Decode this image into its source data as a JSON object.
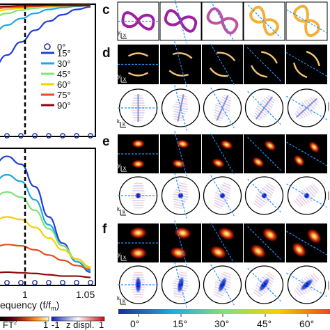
{
  "panel_labels": {
    "c": "c",
    "d": "d",
    "e": "e",
    "f": "f"
  },
  "legend": {
    "items": [
      {
        "label": "0°",
        "color": "#1c2f8f",
        "marker": "open-circle"
      },
      {
        "label": "15°",
        "color": "#1f3fd1"
      },
      {
        "label": "30°",
        "color": "#1fa7e6"
      },
      {
        "label": "45°",
        "color": "#7fe27a"
      },
      {
        "label": "60°",
        "color": "#f5d000"
      },
      {
        "label": "75°",
        "color": "#e84a1a"
      },
      {
        "label": "90°",
        "color": "#8a0a0a"
      }
    ]
  },
  "xaxis": {
    "label": "equency (f/f",
    "sub": "m",
    "close": ")",
    "tick1": "1",
    "tick2": "1.05"
  },
  "colorbars": {
    "ft": {
      "label": "FT",
      "sup": "2",
      "min": "1",
      "max": "1"
    },
    "z": {
      "min": "-1",
      "label": "z displ.",
      "max": "1"
    },
    "angle": {
      "ticks": [
        "0°",
        "15°",
        "30°",
        "45°",
        "60°"
      ]
    }
  },
  "small_axes": {
    "y": "y",
    "x": "x",
    "ky": "k",
    "kysub": "y",
    "kx": "k",
    "kxsub": "x"
  },
  "colors": {
    "frame": "#000000",
    "dashed_blue": "#1e90ff",
    "dashed_black": "#000000",
    "ring_purple": "#a020a0",
    "ring_yellow": "#f2b035"
  },
  "chart_data": [
    {
      "type": "line",
      "title": "",
      "xlabel": "",
      "ylabel": "",
      "x": [
        0.95,
        0.96,
        0.97,
        0.98,
        0.99,
        1.0,
        1.01,
        1.02,
        1.03,
        1.04,
        1.05,
        1.06
      ],
      "xlim": [
        0.95,
        1.06
      ],
      "ylim": [
        0,
        1
      ],
      "grid": false,
      "series": [
        {
          "name": "0°",
          "values": [
            0,
            0,
            0,
            0,
            0,
            0,
            0,
            0,
            0,
            0,
            0,
            0
          ]
        },
        {
          "name": "15°",
          "values": [
            0.2,
            0.25,
            0.32,
            0.41,
            0.52,
            0.62,
            0.72,
            0.81,
            0.88,
            0.93,
            0.97,
            0.99
          ]
        },
        {
          "name": "30°",
          "values": [
            0.53,
            0.59,
            0.66,
            0.73,
            0.79,
            0.85,
            0.9,
            0.94,
            0.97,
            0.985,
            0.995,
            1.0
          ]
        },
        {
          "name": "45°",
          "values": [
            0.74,
            0.78,
            0.83,
            0.87,
            0.91,
            0.94,
            0.965,
            0.98,
            0.99,
            0.995,
            1.0,
            1.0
          ]
        },
        {
          "name": "60°",
          "values": [
            0.84,
            0.87,
            0.9,
            0.93,
            0.95,
            0.97,
            0.98,
            0.99,
            0.995,
            1.0,
            1.0,
            1.0
          ]
        },
        {
          "name": "75°",
          "values": [
            0.91,
            0.93,
            0.95,
            0.96,
            0.975,
            0.985,
            0.99,
            0.995,
            1.0,
            1.0,
            1.0,
            1.0
          ]
        },
        {
          "name": "90°",
          "values": [
            0.97,
            0.975,
            0.98,
            0.985,
            0.99,
            0.995,
            1.0,
            1.0,
            1.0,
            1.0,
            1.0,
            1.0
          ]
        }
      ]
    },
    {
      "type": "line",
      "title": "",
      "xlabel": "equency (f/fm)",
      "ylabel": "",
      "x": [
        0.95,
        0.96,
        0.97,
        0.98,
        0.99,
        1.0,
        1.01,
        1.02,
        1.03,
        1.04,
        1.05,
        1.06
      ],
      "xlim": [
        0.95,
        1.06
      ],
      "ylim": [
        0,
        1
      ],
      "xticks": [
        "1",
        "1.05"
      ],
      "grid": false,
      "series": [
        {
          "name": "0°",
          "values": [
            0,
            0,
            0,
            0,
            0,
            0,
            0,
            0,
            0,
            0,
            0,
            0
          ]
        },
        {
          "name": "15°",
          "values": [
            0.2,
            0.31,
            0.5,
            0.74,
            0.9,
            0.96,
            0.9,
            0.73,
            0.5,
            0.3,
            0.16,
            0.08
          ]
        },
        {
          "name": "30°",
          "values": [
            0.17,
            0.27,
            0.43,
            0.63,
            0.77,
            0.82,
            0.77,
            0.63,
            0.44,
            0.28,
            0.16,
            0.09
          ]
        },
        {
          "name": "45°",
          "values": [
            0.17,
            0.26,
            0.39,
            0.54,
            0.65,
            0.69,
            0.65,
            0.55,
            0.41,
            0.28,
            0.18,
            0.11
          ]
        },
        {
          "name": "60°",
          "values": [
            0.15,
            0.22,
            0.31,
            0.4,
            0.47,
            0.5,
            0.48,
            0.42,
            0.34,
            0.25,
            0.18,
            0.12
          ]
        },
        {
          "name": "75°",
          "values": [
            0.1,
            0.14,
            0.19,
            0.24,
            0.27,
            0.29,
            0.28,
            0.25,
            0.21,
            0.17,
            0.13,
            0.1
          ]
        },
        {
          "name": "90°",
          "values": [
            0.04,
            0.05,
            0.06,
            0.07,
            0.075,
            0.08,
            0.075,
            0.07,
            0.06,
            0.05,
            0.05,
            0.04
          ]
        }
      ]
    }
  ]
}
